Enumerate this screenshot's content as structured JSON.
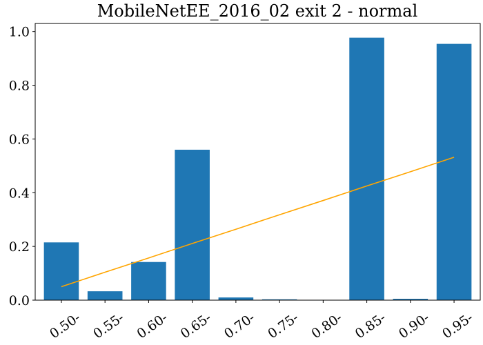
{
  "chart_data": {
    "type": "bar",
    "title": "MobileNetEE_2016_02 exit 2 - normal",
    "xlabel": "",
    "ylabel": "",
    "categories": [
      "0.50-",
      "0.55-",
      "0.60-",
      "0.65-",
      "0.70-",
      "0.75-",
      "0.80-",
      "0.85-",
      "0.90-",
      "0.95-"
    ],
    "series": [
      {
        "type": "bar",
        "values": [
          0.215,
          0.033,
          0.142,
          0.56,
          0.01,
          0.003,
          0.0,
          0.977,
          0.005,
          0.954
        ]
      },
      {
        "type": "line",
        "values": [
          0.05,
          0.104,
          0.157,
          0.211,
          0.264,
          0.318,
          0.371,
          0.425,
          0.478,
          0.532
        ]
      }
    ],
    "ylim": [
      0,
      1.03
    ],
    "yticks": [
      "0.0",
      "0.2",
      "0.4",
      "0.6",
      "0.8",
      "1.0"
    ],
    "grid": false,
    "legend": "none",
    "colors": {
      "bars": "#1f77b4",
      "trend": "#ffa500"
    }
  }
}
